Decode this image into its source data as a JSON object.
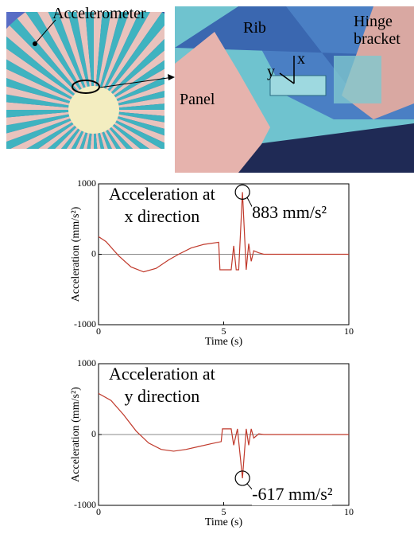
{
  "illustration": {
    "labels": {
      "accelerometer": "Accelerometer",
      "rib": "Rib",
      "hinge": "Hinge\nbracket",
      "panel": "Panel",
      "axis_y": "y",
      "axis_x": "x"
    }
  },
  "chart_data": [
    {
      "type": "line",
      "title": "Acceleration at\nx direction",
      "annotation": "883 mm/s²",
      "x_label": "Time (s)",
      "y_label": "Acceleration (mm/s²)",
      "x": [
        0,
        0.3,
        0.8,
        1.3,
        1.8,
        2.3,
        2.8,
        3.2,
        3.7,
        4.2,
        4.8,
        4.85,
        5.3,
        5.4,
        5.5,
        5.6,
        5.75,
        5.9,
        6.0,
        6.1,
        6.2,
        6.4,
        6.6,
        10
      ],
      "series": [
        {
          "color": "#c0392b",
          "values": [
            250,
            180,
            -20,
            -180,
            -250,
            -200,
            -80,
            0,
            90,
            140,
            170,
            -220,
            -220,
            120,
            -220,
            -220,
            883,
            -220,
            150,
            -100,
            50,
            20,
            0,
            0
          ]
        }
      ],
      "xlim": [
        0,
        10
      ],
      "xticks": [
        0,
        5,
        10
      ],
      "ylim": [
        -1000,
        1000
      ],
      "yticks": [
        -1000,
        0,
        1000
      ],
      "zero_line": true
    },
    {
      "type": "line",
      "title": "Acceleration at\ny direction",
      "annotation": "-617 mm/s²",
      "x_label": "Time (s)",
      "y_label": "Acceleration (mm/s²)",
      "x": [
        0,
        0.5,
        1,
        1.5,
        2,
        2.5,
        3,
        3.5,
        4,
        4.5,
        4.9,
        4.95,
        5.3,
        5.4,
        5.55,
        5.75,
        5.9,
        6.0,
        6.1,
        6.2,
        6.4,
        6.6,
        10
      ],
      "series": [
        {
          "color": "#c0392b",
          "values": [
            580,
            480,
            280,
            50,
            -120,
            -210,
            -235,
            -210,
            -170,
            -130,
            -100,
            80,
            80,
            -150,
            80,
            -617,
            80,
            -150,
            80,
            -50,
            10,
            0,
            0
          ]
        }
      ],
      "xlim": [
        0,
        10
      ],
      "xticks": [
        0,
        5,
        10
      ],
      "ylim": [
        -1000,
        1000
      ],
      "yticks": [
        -1000,
        0,
        1000
      ],
      "zero_line": true
    }
  ]
}
